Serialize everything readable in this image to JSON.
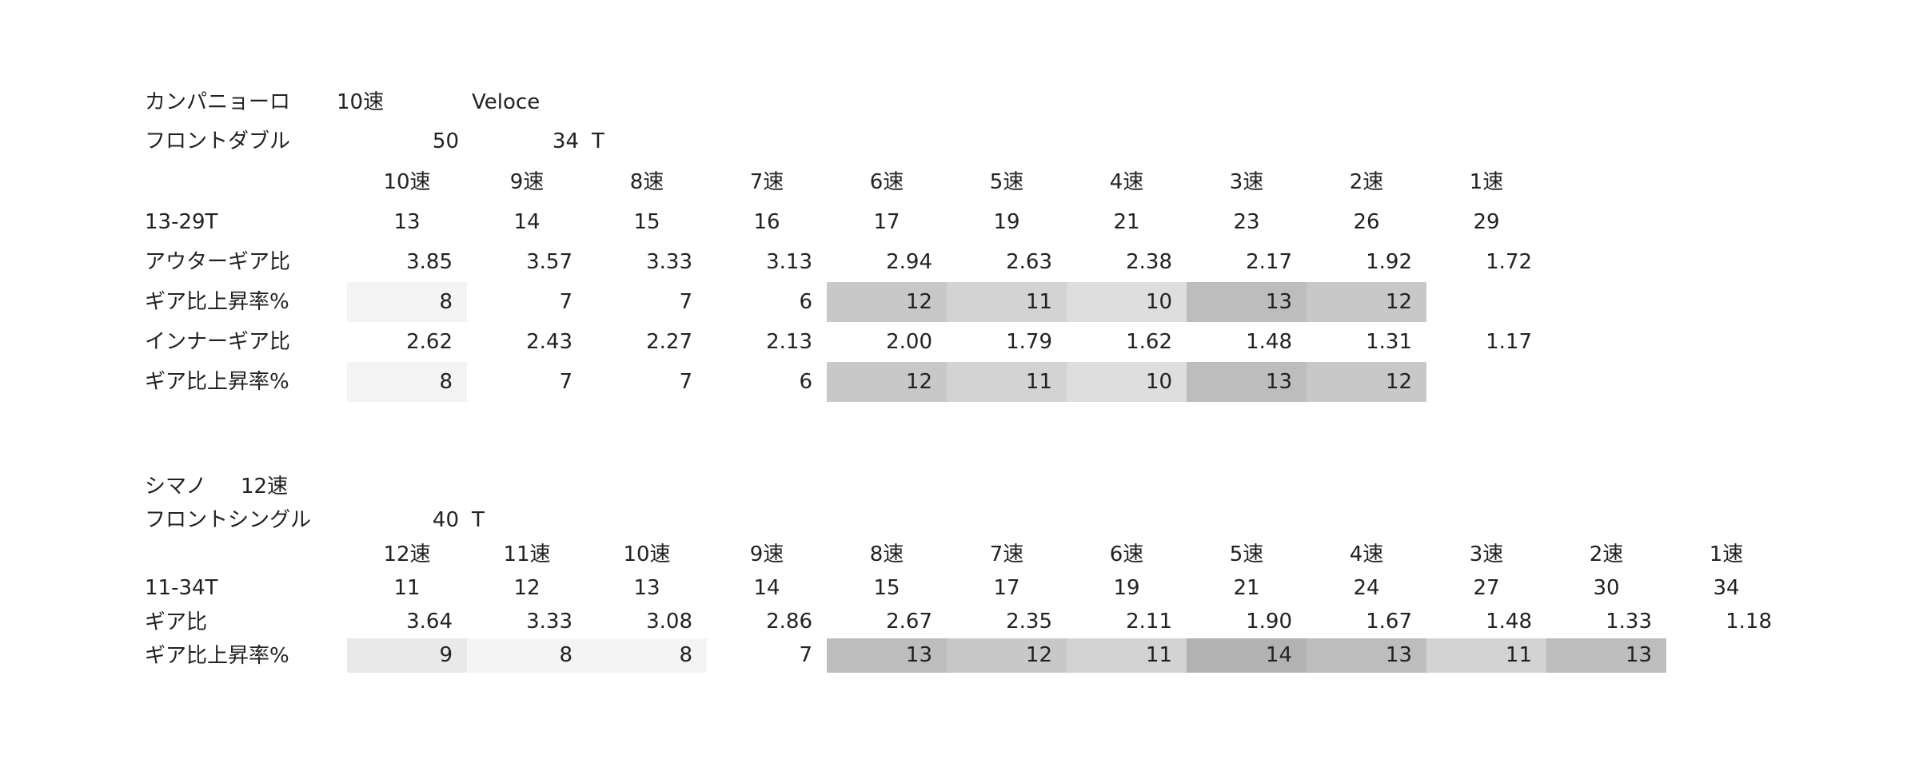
{
  "sections": [
    {
      "title": [
        "カンパニョーロ",
        "10速",
        "Veloce"
      ],
      "front": {
        "label": "フロントダブル",
        "teeth": [
          50,
          34
        ],
        "unit": "T"
      },
      "speeds": [
        "10速",
        "9速",
        "8速",
        "7速",
        "6速",
        "5速",
        "4速",
        "3速",
        "2速",
        "1速"
      ],
      "cassette": "13-29T",
      "cogs": [
        13,
        14,
        15,
        16,
        17,
        19,
        21,
        23,
        26,
        29
      ],
      "rows": [
        {
          "label": "アウターギア比",
          "values": [
            "3.85",
            "3.57",
            "3.33",
            "3.13",
            "2.94",
            "2.63",
            "2.38",
            "2.17",
            "1.92",
            "1.72"
          ]
        },
        {
          "label": "ギア比上昇率%",
          "values": [
            8,
            7,
            7,
            6,
            12,
            11,
            10,
            13,
            12
          ]
        },
        {
          "label": "インナーギア比",
          "values": [
            "2.62",
            "2.43",
            "2.27",
            "2.13",
            "2.00",
            "1.79",
            "1.62",
            "1.48",
            "1.31",
            "1.17"
          ]
        },
        {
          "label": "ギア比上昇率%",
          "values": [
            8,
            7,
            7,
            6,
            12,
            11,
            10,
            13,
            12
          ]
        }
      ]
    },
    {
      "title": [
        "シマノ",
        "12速"
      ],
      "front": {
        "label": "フロントシングル",
        "teeth": [
          40
        ],
        "unit": "T"
      },
      "speeds": [
        "12速",
        "11速",
        "10速",
        "9速",
        "8速",
        "7速",
        "6速",
        "5速",
        "4速",
        "3速",
        "2速",
        "1速"
      ],
      "cassette": "11-34T",
      "cogs": [
        11,
        12,
        13,
        14,
        15,
        17,
        19,
        21,
        24,
        27,
        30,
        34
      ],
      "rows": [
        {
          "label": "ギア比",
          "values": [
            "3.64",
            "3.33",
            "3.08",
            "2.86",
            "2.67",
            "2.35",
            "2.11",
            "1.90",
            "1.67",
            "1.48",
            "1.33",
            "1.18"
          ]
        },
        {
          "label": "ギア比上昇率%",
          "values": [
            9,
            8,
            8,
            7,
            13,
            12,
            11,
            14,
            13,
            11,
            13
          ]
        }
      ]
    }
  ]
}
